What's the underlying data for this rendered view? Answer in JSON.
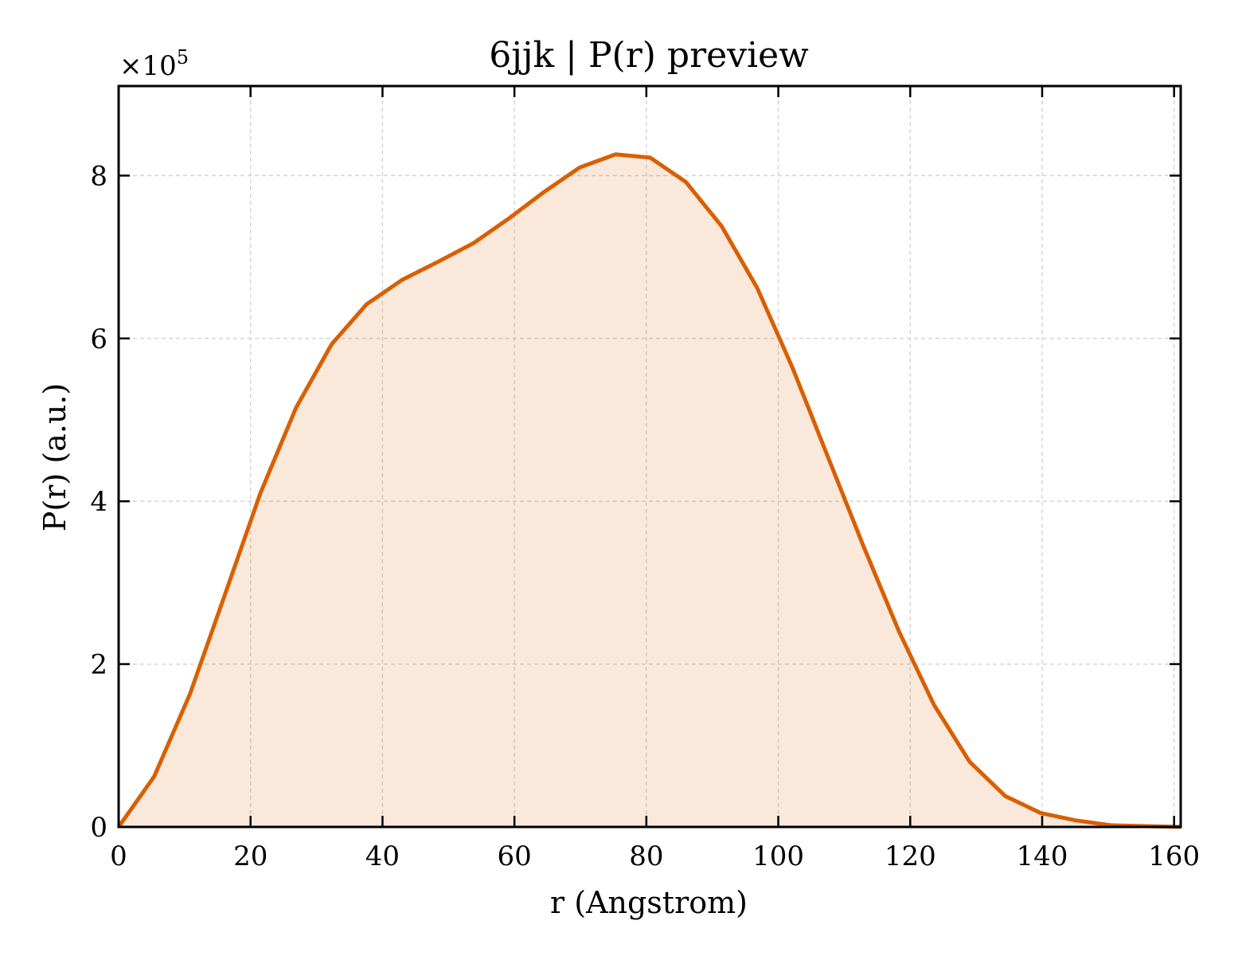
{
  "chart_data": {
    "type": "area",
    "title": "6jjk | P(r) preview",
    "xlabel": "r (Angstrom)",
    "ylabel": "P(r) (a.u.)",
    "y_multiplier_label": "×10",
    "y_multiplier_exponent": "5",
    "y_scale_factor": 100000,
    "xlim": [
      0,
      161
    ],
    "ylim": [
      0,
      910000
    ],
    "x_ticks": [
      0,
      20,
      40,
      60,
      80,
      100,
      120,
      140,
      160
    ],
    "y_ticks": [
      0,
      200000,
      400000,
      600000,
      800000
    ],
    "grid": true,
    "legend": "none",
    "line_color": "#d95f02",
    "fill_color": "#d95f02",
    "fill_opacity": 0.14,
    "series": [
      {
        "x": [
          0,
          5.4,
          10.8,
          16.1,
          21.5,
          26.9,
          32.3,
          37.6,
          43.0,
          48.4,
          53.8,
          59.1,
          64.5,
          69.9,
          75.3,
          80.6,
          86.0,
          91.4,
          96.8,
          102.1,
          107.5,
          112.9,
          118.3,
          123.6,
          129.0,
          134.4,
          139.8,
          145.1,
          150.5,
          155.9,
          161.0
        ],
        "values": [
          0,
          62000,
          163000,
          285000,
          410000,
          515000,
          593000,
          642000,
          672000,
          694000,
          717000,
          747000,
          780000,
          810000,
          826000,
          822000,
          792000,
          738000,
          662000,
          565000,
          455000,
          345000,
          240000,
          150000,
          80000,
          38000,
          17000,
          8000,
          2000,
          1000,
          0
        ]
      }
    ]
  }
}
